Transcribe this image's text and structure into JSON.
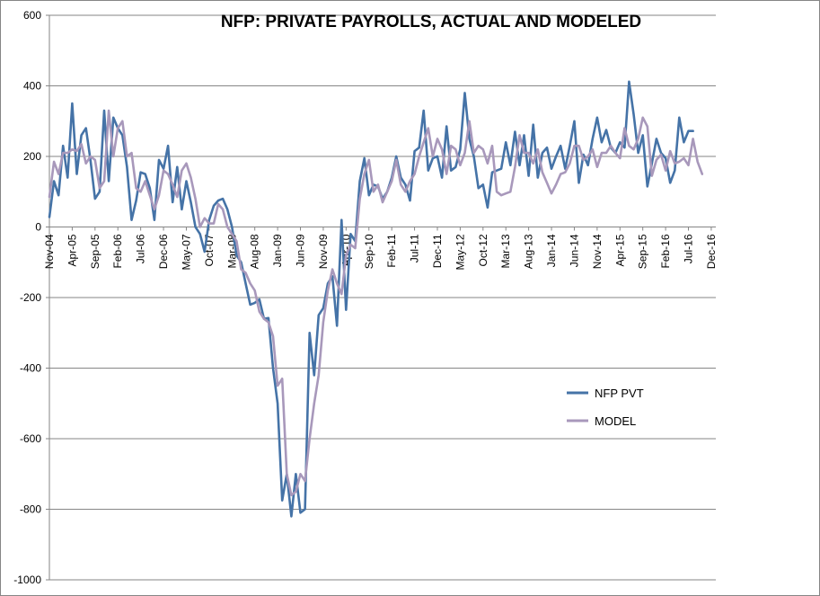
{
  "chart_data": {
    "type": "line",
    "title": "NFP: PRIVATE PAYROLLS, ACTUAL AND MODELED",
    "xlabel": "",
    "ylabel": "",
    "ylim": [
      -1000,
      600
    ],
    "y_ticks": [
      600,
      400,
      200,
      0,
      -200,
      -400,
      -600,
      -800,
      -1000
    ],
    "x_tick_labels": [
      "Nov-04",
      "Apr-05",
      "Sep-05",
      "Feb-06",
      "Jul-06",
      "Dec-06",
      "May-07",
      "Oct-07",
      "Mar-08",
      "Aug-08",
      "Jan-09",
      "Jun-09",
      "Nov-09",
      "Apr-10",
      "Sep-10",
      "Feb-11",
      "Jul-11",
      "Dec-11",
      "May-12",
      "Oct-12",
      "Mar-13",
      "Aug-13",
      "Jan-14",
      "Jun-14",
      "Nov-14",
      "Apr-15",
      "Sep-15",
      "Feb-16",
      "Jul-16",
      "Dec-16"
    ],
    "x_start": "Nov-04",
    "x_months": 146,
    "grid": true,
    "legend_position": "right",
    "series": [
      {
        "name": "NFP PVT",
        "color": "#4573a7",
        "values": [
          28,
          130,
          90,
          230,
          140,
          350,
          150,
          260,
          280,
          190,
          80,
          100,
          330,
          130,
          310,
          280,
          260,
          170,
          20,
          75,
          155,
          150,
          110,
          20,
          190,
          165,
          230,
          70,
          170,
          50,
          130,
          70,
          0,
          -20,
          -70,
          20,
          60,
          75,
          80,
          50,
          0,
          -80,
          -100,
          -160,
          -220,
          -215,
          -205,
          -260,
          -258,
          -400,
          -500,
          -775,
          -700,
          -820,
          -700,
          -810,
          -800,
          -300,
          -420,
          -250,
          -230,
          -160,
          -140,
          -280,
          20,
          -235,
          -20,
          -40,
          130,
          195,
          90,
          120,
          115,
          80,
          100,
          140,
          200,
          140,
          120,
          75,
          215,
          225,
          330,
          160,
          195,
          200,
          140,
          285,
          160,
          170,
          220,
          380,
          250,
          200,
          110,
          120,
          55,
          155,
          160,
          165,
          240,
          175,
          270,
          175,
          260,
          145,
          290,
          140,
          210,
          225,
          165,
          200,
          230,
          165,
          230,
          300,
          125,
          205,
          175,
          250,
          310,
          240,
          275,
          225,
          210,
          240,
          225,
          412,
          320,
          210,
          260,
          115,
          180,
          250,
          210,
          195,
          125,
          160,
          310,
          240,
          272,
          272
        ]
      },
      {
        "name": "MODEL",
        "color": "#a898bb",
        "values": [
          85,
          185,
          150,
          210,
          210,
          220,
          215,
          235,
          180,
          200,
          190,
          110,
          130,
          330,
          200,
          280,
          300,
          200,
          210,
          110,
          100,
          130,
          90,
          50,
          90,
          160,
          150,
          120,
          85,
          160,
          180,
          140,
          80,
          0,
          25,
          10,
          10,
          65,
          50,
          0,
          -20,
          -40,
          -120,
          -130,
          -160,
          -180,
          -240,
          -260,
          -270,
          -310,
          -450,
          -430,
          -700,
          -760,
          -750,
          -700,
          -720,
          -600,
          -500,
          -420,
          -270,
          -180,
          -120,
          -160,
          -190,
          -80,
          -50,
          -60,
          80,
          150,
          190,
          100,
          120,
          70,
          100,
          130,
          190,
          120,
          100,
          130,
          150,
          200,
          240,
          280,
          200,
          250,
          220,
          150,
          230,
          220,
          175,
          210,
          300,
          210,
          230,
          220,
          180,
          230,
          100,
          90,
          95,
          100,
          170,
          260,
          210,
          210,
          180,
          220,
          155,
          125,
          95,
          120,
          150,
          155,
          180,
          230,
          230,
          190,
          200,
          220,
          170,
          210,
          210,
          230,
          210,
          195,
          280,
          230,
          220,
          250,
          310,
          285,
          145,
          190,
          205,
          160,
          215,
          180,
          185,
          195,
          175,
          250,
          185,
          150
        ]
      }
    ]
  }
}
